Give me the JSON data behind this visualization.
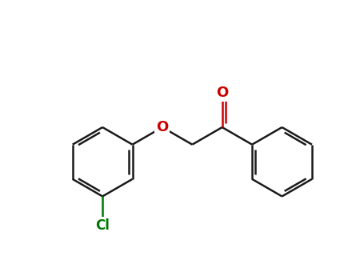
{
  "background_color": "#ffffff",
  "bond_color": "#1a1a1a",
  "bond_width": 1.8,
  "O_color": "#cc0000",
  "Cl_color": "#007700",
  "label_fontsize": 11,
  "fig_width": 4.55,
  "fig_height": 3.5,
  "dpi": 100,
  "BL": 1.0,
  "xlim": [
    0,
    10
  ],
  "ylim": [
    0,
    7.7
  ]
}
